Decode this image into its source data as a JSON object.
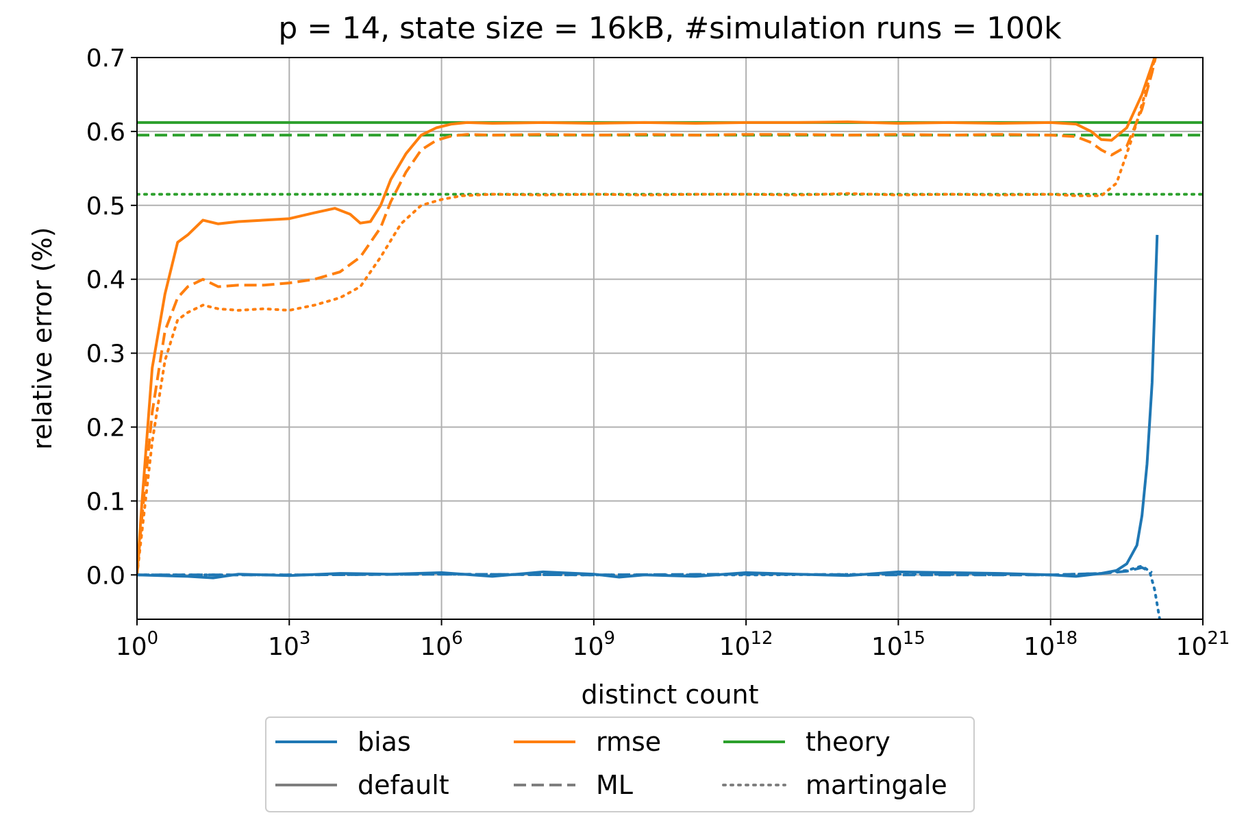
{
  "chart_data": {
    "type": "line",
    "title": "p = 14, state size = 16kB, #simulation runs = 100k",
    "xlabel": "distinct count",
    "ylabel": "relative error (%)",
    "x_scale": "log10",
    "xlim_exponent": [
      0,
      21
    ],
    "ylim": [
      -0.06,
      0.7
    ],
    "grid": true,
    "x_ticks": [
      {
        "base": "10",
        "exp": "0",
        "value_exponent": 0
      },
      {
        "base": "10",
        "exp": "3",
        "value_exponent": 3
      },
      {
        "base": "10",
        "exp": "6",
        "value_exponent": 6
      },
      {
        "base": "10",
        "exp": "9",
        "value_exponent": 9
      },
      {
        "base": "10",
        "exp": "12",
        "value_exponent": 12
      },
      {
        "base": "10",
        "exp": "15",
        "value_exponent": 15
      },
      {
        "base": "10",
        "exp": "18",
        "value_exponent": 18
      },
      {
        "base": "10",
        "exp": "21",
        "value_exponent": 21
      }
    ],
    "y_ticks": [
      "0.0",
      "0.1",
      "0.2",
      "0.3",
      "0.4",
      "0.5",
      "0.6",
      "0.7"
    ],
    "y_tick_values": [
      0.0,
      0.1,
      0.2,
      0.3,
      0.4,
      0.5,
      0.6,
      0.7
    ],
    "colors": {
      "bias": "#1f77b4",
      "rmse": "#ff7f0e",
      "theory": "#2ca02c",
      "legend_gray": "#7f7f7f",
      "grid": "#b0b0b0"
    },
    "legend": {
      "placement": "below-center",
      "entries": [
        {
          "label": "bias",
          "color": "#1f77b4",
          "dash": "solid"
        },
        {
          "label": "rmse",
          "color": "#ff7f0e",
          "dash": "solid"
        },
        {
          "label": "theory",
          "color": "#2ca02c",
          "dash": "solid"
        },
        {
          "label": "default",
          "color": "#7f7f7f",
          "dash": "solid"
        },
        {
          "label": "ML",
          "color": "#7f7f7f",
          "dash": "dashed"
        },
        {
          "label": "martingale",
          "color": "#7f7f7f",
          "dash": "dotted"
        }
      ]
    },
    "series": [
      {
        "metric": "theory",
        "estimator": "default",
        "color": "#2ca02c",
        "dash": "solid",
        "log10_x": [
          0,
          21
        ],
        "y": [
          0.612,
          0.612
        ]
      },
      {
        "metric": "theory",
        "estimator": "ML",
        "color": "#2ca02c",
        "dash": "dashed",
        "log10_x": [
          0,
          21
        ],
        "y": [
          0.595,
          0.595
        ]
      },
      {
        "metric": "theory",
        "estimator": "martingale",
        "color": "#2ca02c",
        "dash": "dotted",
        "log10_x": [
          0,
          21
        ],
        "y": [
          0.515,
          0.515
        ]
      },
      {
        "metric": "rmse",
        "estimator": "default",
        "color": "#ff7f0e",
        "dash": "solid",
        "log10_x": [
          0,
          0.1,
          0.3,
          0.55,
          0.8,
          1.0,
          1.3,
          1.6,
          2.0,
          2.5,
          3.0,
          3.5,
          3.9,
          4.2,
          4.4,
          4.6,
          4.8,
          5.0,
          5.3,
          5.6,
          5.9,
          6.2,
          6.5,
          7.0,
          8.0,
          9.0,
          10.0,
          11.0,
          12.0,
          13.0,
          14.0,
          15.0,
          16.0,
          17.0,
          18.0,
          18.5,
          18.8,
          19.0,
          19.2,
          19.5,
          19.8,
          20.0,
          20.1
        ],
        "y": [
          0.0,
          0.1,
          0.28,
          0.38,
          0.45,
          0.46,
          0.48,
          0.475,
          0.478,
          0.48,
          0.482,
          0.49,
          0.496,
          0.488,
          0.476,
          0.478,
          0.5,
          0.535,
          0.57,
          0.595,
          0.605,
          0.61,
          0.612,
          0.611,
          0.612,
          0.611,
          0.612,
          0.611,
          0.612,
          0.612,
          0.613,
          0.611,
          0.612,
          0.611,
          0.612,
          0.61,
          0.6,
          0.589,
          0.588,
          0.605,
          0.65,
          0.69,
          0.71
        ]
      },
      {
        "metric": "rmse",
        "estimator": "ML",
        "color": "#ff7f0e",
        "dash": "dashed",
        "log10_x": [
          0,
          0.1,
          0.3,
          0.55,
          0.8,
          1.0,
          1.3,
          1.6,
          2.0,
          2.5,
          3.0,
          3.5,
          4.0,
          4.4,
          4.8,
          5.0,
          5.3,
          5.6,
          5.9,
          6.2,
          6.5,
          7.0,
          8.0,
          9.0,
          10.0,
          11.0,
          12.0,
          13.0,
          14.0,
          15.0,
          16.0,
          17.0,
          18.0,
          18.5,
          18.8,
          19.0,
          19.2,
          19.5,
          19.8,
          20.0,
          20.1
        ],
        "y": [
          0.0,
          0.08,
          0.22,
          0.33,
          0.375,
          0.39,
          0.4,
          0.39,
          0.392,
          0.392,
          0.395,
          0.4,
          0.41,
          0.43,
          0.47,
          0.505,
          0.545,
          0.575,
          0.588,
          0.594,
          0.596,
          0.595,
          0.596,
          0.595,
          0.596,
          0.595,
          0.596,
          0.596,
          0.595,
          0.596,
          0.595,
          0.596,
          0.595,
          0.593,
          0.585,
          0.575,
          0.568,
          0.58,
          0.63,
          0.68,
          0.71
        ]
      },
      {
        "metric": "rmse",
        "estimator": "martingale",
        "color": "#ff7f0e",
        "dash": "dotted",
        "log10_x": [
          0,
          0.1,
          0.3,
          0.55,
          0.8,
          1.0,
          1.3,
          1.6,
          2.0,
          2.5,
          3.0,
          3.5,
          4.0,
          4.4,
          4.8,
          5.2,
          5.6,
          6.0,
          6.4,
          7.0,
          8.0,
          9.0,
          10.0,
          11.0,
          12.0,
          13.0,
          14.0,
          15.0,
          16.0,
          17.0,
          18.0,
          18.5,
          19.0,
          19.3,
          19.6,
          19.9,
          20.1
        ],
        "y": [
          0.0,
          0.06,
          0.18,
          0.29,
          0.345,
          0.355,
          0.365,
          0.36,
          0.358,
          0.36,
          0.358,
          0.365,
          0.375,
          0.39,
          0.43,
          0.475,
          0.5,
          0.508,
          0.513,
          0.515,
          0.514,
          0.515,
          0.514,
          0.515,
          0.515,
          0.514,
          0.516,
          0.514,
          0.515,
          0.514,
          0.515,
          0.513,
          0.513,
          0.53,
          0.59,
          0.66,
          0.71
        ]
      },
      {
        "metric": "bias",
        "estimator": "default",
        "color": "#1f77b4",
        "dash": "solid",
        "log10_x": [
          0,
          1.0,
          1.5,
          2.0,
          3.0,
          4.0,
          5.0,
          6.0,
          7.0,
          8.0,
          9.0,
          9.5,
          10.0,
          11.0,
          12.0,
          13.0,
          14.0,
          15.0,
          16.0,
          17.0,
          18.0,
          18.5,
          19.0,
          19.3,
          19.5,
          19.7,
          19.8,
          19.9,
          20.0,
          20.05,
          20.1
        ],
        "y": [
          0.0,
          -0.002,
          -0.004,
          0.001,
          -0.001,
          0.002,
          0.001,
          0.003,
          -0.002,
          0.004,
          0.001,
          -0.003,
          0.0,
          -0.002,
          0.003,
          0.001,
          -0.001,
          0.004,
          0.003,
          0.002,
          0.0,
          -0.002,
          0.002,
          0.006,
          0.015,
          0.04,
          0.08,
          0.15,
          0.26,
          0.36,
          0.46
        ]
      },
      {
        "metric": "bias",
        "estimator": "ML",
        "color": "#1f77b4",
        "dash": "dashed",
        "log10_x": [
          0,
          3.0,
          6.0,
          9.0,
          12.0,
          15.0,
          18.0,
          19.0,
          19.5,
          19.8,
          20.0
        ],
        "y": [
          0.0,
          0.0,
          0.001,
          0.0,
          0.001,
          0.0,
          0.0,
          0.002,
          0.005,
          0.01,
          0.003
        ]
      },
      {
        "metric": "bias",
        "estimator": "martingale",
        "color": "#1f77b4",
        "dash": "dotted",
        "log10_x": [
          0,
          3.0,
          6.0,
          9.0,
          12.0,
          15.0,
          18.0,
          19.0,
          19.5,
          19.8,
          19.95,
          20.05,
          20.15
        ],
        "y": [
          0.0,
          0.0,
          0.001,
          0.0,
          0.0,
          0.001,
          0.0,
          0.002,
          0.006,
          0.012,
          0.005,
          -0.02,
          -0.06
        ]
      }
    ]
  }
}
